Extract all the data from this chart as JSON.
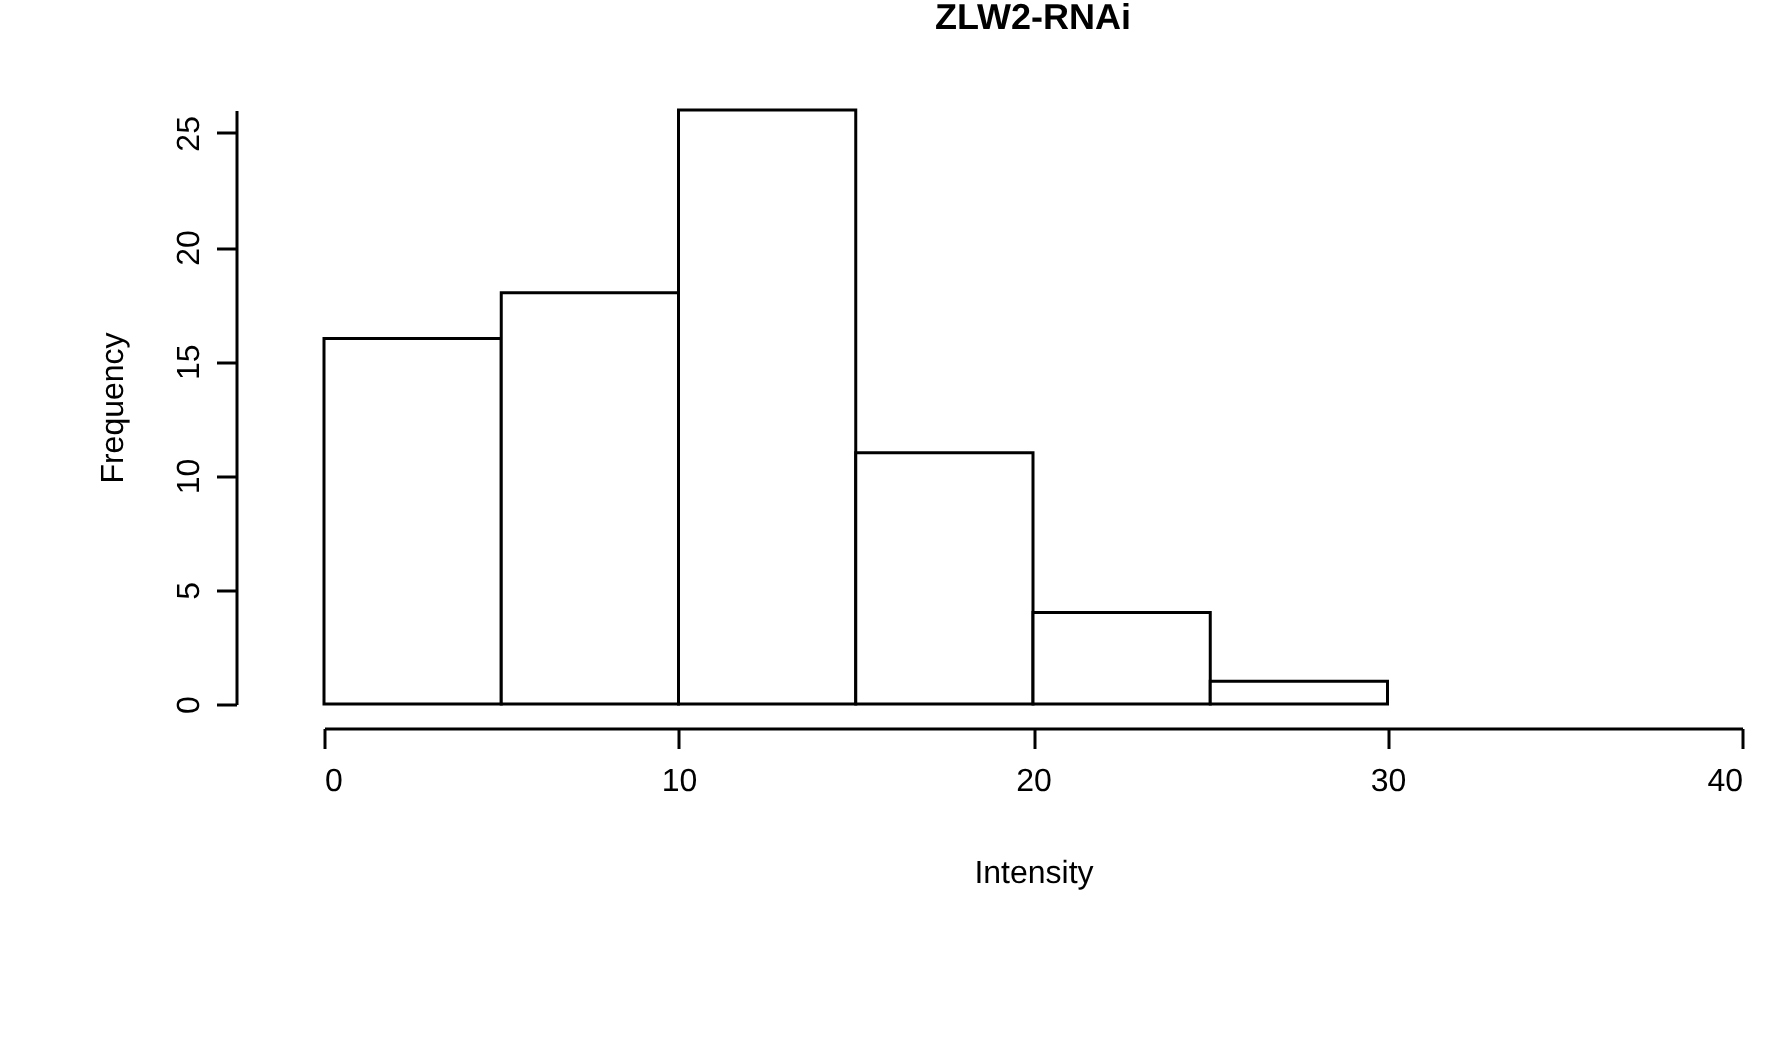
{
  "chart_data": {
    "type": "histogram",
    "title": "ZLW2-RNAi",
    "xlabel": "Intensity",
    "ylabel": "Frequency",
    "bins": [
      0,
      5,
      10,
      15,
      20,
      25,
      30
    ],
    "values": [
      16,
      18,
      26,
      11,
      4,
      1
    ],
    "color": "#ffffff",
    "xlim": [
      0,
      40
    ],
    "xticks": [
      0,
      10,
      20,
      30,
      40
    ],
    "ylim": [
      0,
      26
    ],
    "yticks": [
      0,
      5,
      10,
      15,
      20,
      25
    ],
    "grid": false
  }
}
